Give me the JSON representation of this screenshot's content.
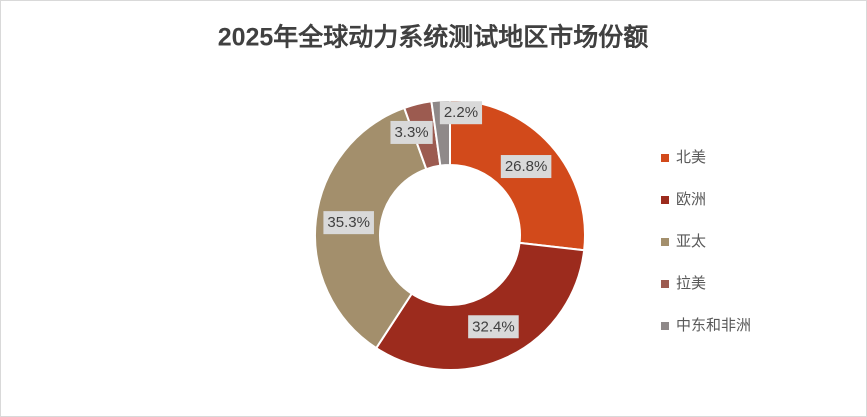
{
  "chart_data": {
    "type": "donut",
    "title": "2025年全球动力系统测试地区市场份额",
    "categories": [
      "北美",
      "欧洲",
      "亚太",
      "拉美",
      "中东和非洲"
    ],
    "values": [
      26.8,
      32.4,
      35.3,
      3.3,
      2.2
    ],
    "value_labels": [
      "26.8%",
      "32.4%",
      "35.3%",
      "3.3%",
      "2.2%"
    ],
    "colors": [
      "#d24a1b",
      "#9c2b1d",
      "#a38f6c",
      "#9c5b50",
      "#8f8989"
    ],
    "legend": "right"
  }
}
